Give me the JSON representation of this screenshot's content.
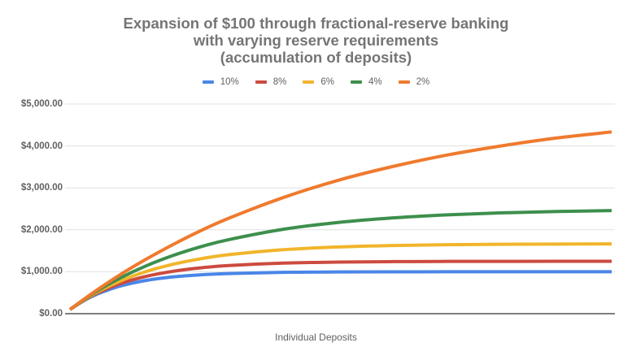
{
  "title_lines": [
    "Expansion of $100 through fractional-reserve banking",
    "with varying reserve requirements",
    "(accumulation of deposits)"
  ],
  "legend": [
    {
      "label": "10%",
      "color": "#4a86e8"
    },
    {
      "label": "8%",
      "color": "#cc4b3f"
    },
    {
      "label": "6%",
      "color": "#f1b52c"
    },
    {
      "label": "4%",
      "color": "#3d8f4c"
    },
    {
      "label": "2%",
      "color": "#ef7a2e"
    }
  ],
  "y_ticks": [
    "$0.00",
    "$1,000.00",
    "$2,000.00",
    "$3,000.00",
    "$4,000.00",
    "$5,000.00"
  ],
  "x_axis_label": "Individual Deposits",
  "chart_data": {
    "type": "line",
    "title": "Expansion of $100 through fractional-reserve banking with varying reserve requirements (accumulation of deposits)",
    "xlabel": "Individual Deposits",
    "ylabel": "",
    "ylim": [
      0,
      5000
    ],
    "y_tick_labels": [
      "$0.00",
      "$1,000.00",
      "$2,000.00",
      "$3,000.00",
      "$4,000.00",
      "$5,000.00"
    ],
    "grid": true,
    "legend_position": "top",
    "x": [
      1,
      5,
      10,
      15,
      20,
      25,
      30,
      40,
      50,
      60,
      70,
      80,
      90,
      100
    ],
    "series": [
      {
        "name": "10%",
        "color": "#4a86e8",
        "values": [
          100,
          409.5,
          651.3,
          794.1,
          878.4,
          928.2,
          957.6,
          985.2,
          994.8,
          998.2,
          999.4,
          999.8,
          999.9,
          1000.0
        ]
      },
      {
        "name": "8%",
        "color": "#cc4b3f",
        "values": [
          100,
          426.2,
          707.5,
          892.5,
          1013.8,
          1095.0,
          1147.5,
          1205.5,
          1230.6,
          1241.6,
          1246.4,
          1248.4,
          1249.3,
          1249.7
        ]
      },
      {
        "name": "6%",
        "color": "#f1b52c",
        "values": [
          100,
          443.3,
          768.3,
          1008.3,
          1183.3,
          1311.7,
          1406.7,
          1526.3,
          1591.2,
          1626.0,
          1644.8,
          1654.9,
          1660.4,
          1663.2
        ]
      },
      {
        "name": "4%",
        "color": "#3d8f4c",
        "values": [
          100,
          462.5,
          837.5,
          1145.0,
          1395.0,
          1600.0,
          1765.0,
          2012.5,
          2175.0,
          2284.0,
          2356.5,
          2404.5,
          2436.5,
          2457.8
        ]
      },
      {
        "name": "2%",
        "color": "#ef7a2e",
        "values": [
          100,
          480.0,
          915.0,
          1305.0,
          1660.0,
          1985.0,
          2275.0,
          2770.0,
          3180.0,
          3510.0,
          3785.0,
          4005.0,
          4190.0,
          4335.0
        ]
      }
    ]
  }
}
